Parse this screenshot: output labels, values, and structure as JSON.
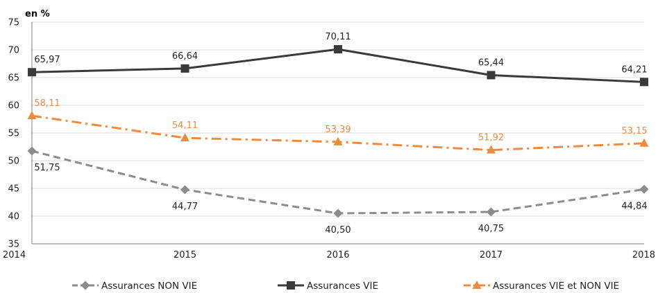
{
  "chart_data": {
    "type": "line",
    "unit_label": "en %",
    "categories": [
      "2014",
      "2015",
      "2016",
      "2017",
      "2018"
    ],
    "ylim": [
      35,
      75
    ],
    "yticks": [
      35,
      40,
      45,
      50,
      55,
      60,
      65,
      70,
      75
    ],
    "grid": true,
    "legend_position": "bottom",
    "series": [
      {
        "name": "Assurances NON VIE",
        "values": [
          51.75,
          44.77,
          40.5,
          40.75,
          44.84
        ],
        "labels": [
          "51,75",
          "44,77",
          "40,50",
          "40,75",
          "44,84"
        ],
        "color": "#8c8c8c",
        "marker": "diamond",
        "line_style": "dashed",
        "label_position": "below"
      },
      {
        "name": "Assurances VIE",
        "values": [
          65.97,
          66.64,
          70.11,
          65.44,
          64.21
        ],
        "labels": [
          "65,97",
          "66,64",
          "70,11",
          "65,44",
          "64,21"
        ],
        "color": "#3a3a3a",
        "marker": "square",
        "line_style": "solid",
        "label_position": "above"
      },
      {
        "name": "Assurances VIE et NON VIE",
        "values": [
          58.11,
          54.11,
          53.39,
          51.92,
          53.15
        ],
        "labels": [
          "58,11",
          "54,11",
          "53,39",
          "51,92",
          "53,15"
        ],
        "color": "#f28a3c",
        "marker": "triangle",
        "line_style": "dash-dot",
        "label_position": "above"
      }
    ]
  }
}
